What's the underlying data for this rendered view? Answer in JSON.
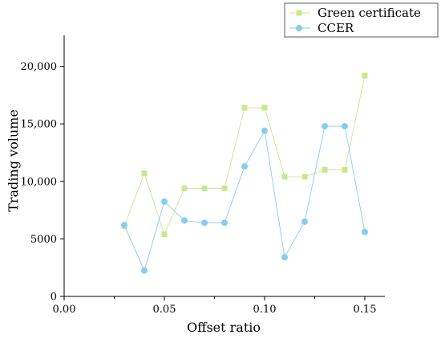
{
  "chart_data": {
    "type": "line",
    "title": "",
    "xlabel": "Offset ratio",
    "ylabel": "Trading volume",
    "xlim": [
      0,
      0.16
    ],
    "ylim": [
      0,
      21000
    ],
    "x_ticks": [
      0.0,
      0.05,
      0.1,
      0.15
    ],
    "x_tick_labels": [
      "0.00",
      "0.05",
      "0.10",
      "0.15"
    ],
    "y_ticks": [
      0,
      5000,
      10000,
      15000,
      20000
    ],
    "y_tick_labels": [
      "0",
      "5000",
      "10,000",
      "15,000",
      "20,000"
    ],
    "grid": false,
    "legend_position": "top-right",
    "x": [
      0.03,
      0.04,
      0.05,
      0.06,
      0.07,
      0.08,
      0.09,
      0.1,
      0.11,
      0.12,
      0.13,
      0.14,
      0.15
    ],
    "series": [
      {
        "name": "Green certificate",
        "color": "#c8e88e",
        "marker": "square",
        "values": [
          6100,
          10700,
          5400,
          9400,
          9400,
          9400,
          16400,
          16400,
          10400,
          10400,
          11000,
          11000,
          19200
        ]
      },
      {
        "name": "CCER",
        "color": "#86cdf0",
        "marker": "circle",
        "values": [
          6200,
          2250,
          8250,
          6600,
          6400,
          6400,
          11300,
          14400,
          3400,
          6500,
          14800,
          14800,
          5600
        ]
      }
    ]
  }
}
